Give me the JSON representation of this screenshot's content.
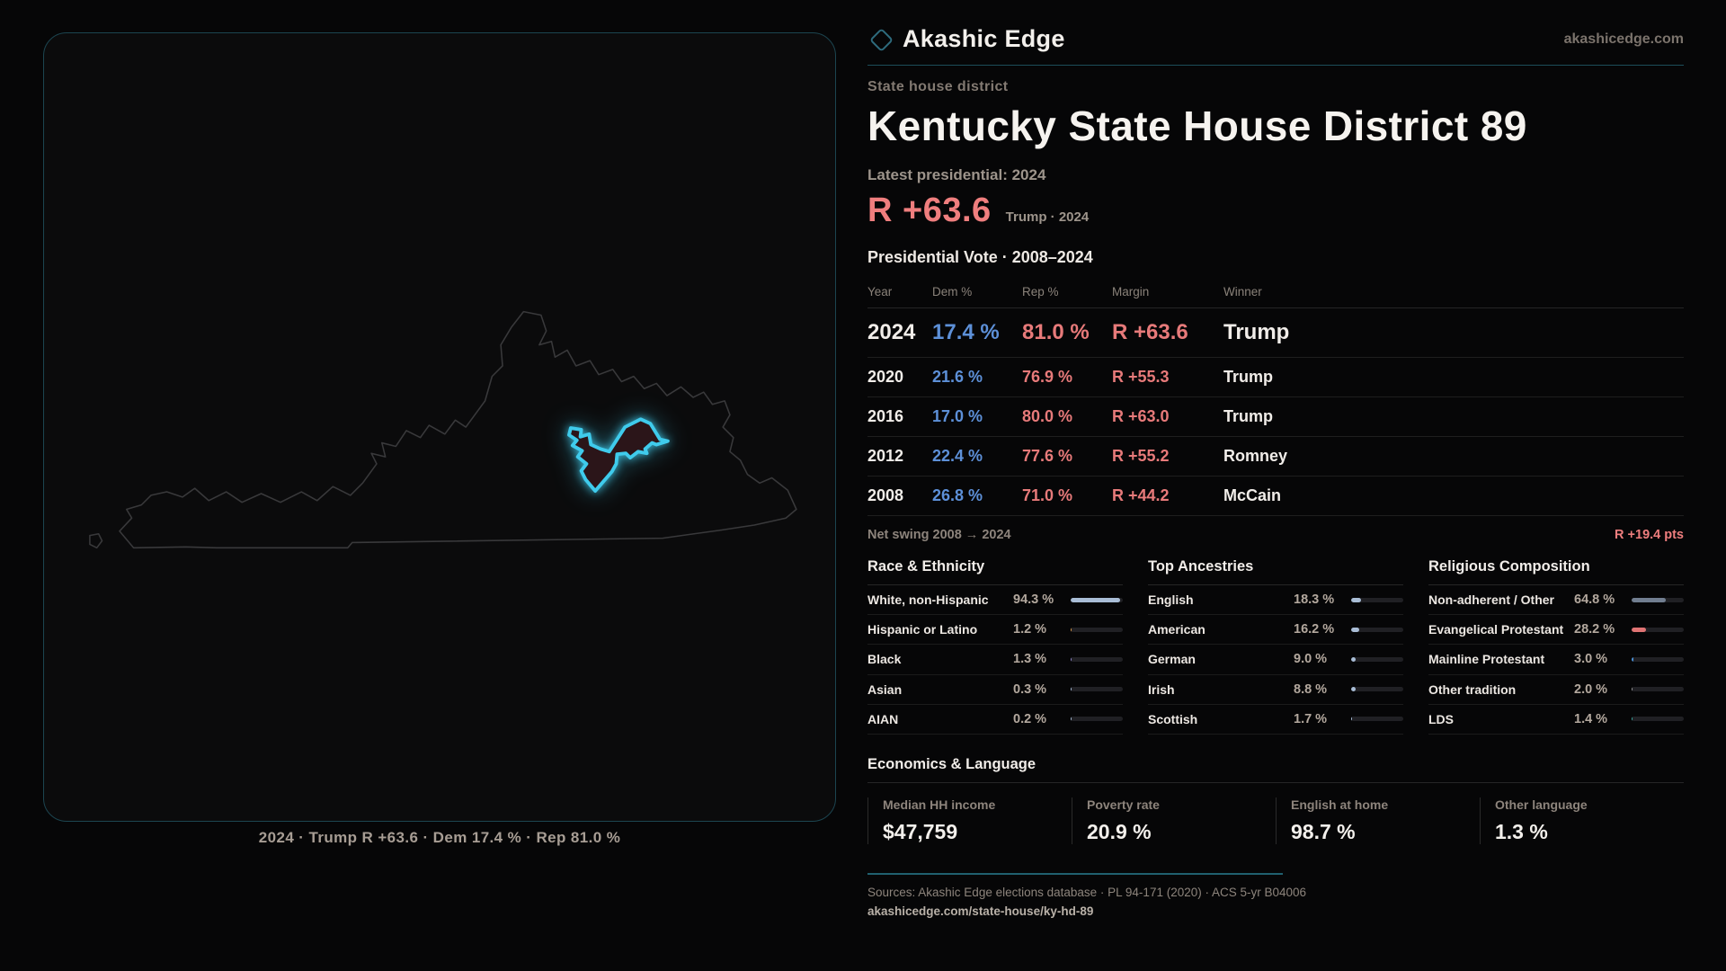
{
  "colors": {
    "accent_cyan": "#3fcbec",
    "rep_red": "#e77a7a",
    "dem_blue": "#5d90d8",
    "teal_rule": "#1d4e5a",
    "bar_steel": "#a9bdd6",
    "bar_slate": "#717e90"
  },
  "map": {
    "caption": "2024 · Trump R +63.6 · Dem 17.4 % · Rep 81.0 %"
  },
  "header": {
    "brand": "Akashic Edge",
    "site": "akashicedge.com",
    "kicker": "State house district",
    "title": "Kentucky State House District 89"
  },
  "headline": {
    "label": "Latest presidential: 2024",
    "margin": "R +63.6",
    "context": "Trump · 2024"
  },
  "vote_table": {
    "title": "Presidential Vote · 2008–2024",
    "columns": {
      "year": "Year",
      "dem": "Dem %",
      "rep": "Rep %",
      "margin": "Margin",
      "winner": "Winner"
    },
    "rows": [
      {
        "year": "2024",
        "dem": "17.4 %",
        "rep": "81.0 %",
        "margin": "R +63.6",
        "winner": "Trump"
      },
      {
        "year": "2020",
        "dem": "21.6 %",
        "rep": "76.9 %",
        "margin": "R +55.3",
        "winner": "Trump"
      },
      {
        "year": "2016",
        "dem": "17.0 %",
        "rep": "80.0 %",
        "margin": "R +63.0",
        "winner": "Trump"
      },
      {
        "year": "2012",
        "dem": "22.4 %",
        "rep": "77.6 %",
        "margin": "R +55.2",
        "winner": "Romney"
      },
      {
        "year": "2008",
        "dem": "26.8 %",
        "rep": "71.0 %",
        "margin": "R +44.2",
        "winner": "McCain"
      }
    ],
    "swing_label": "Net swing 2008 → 2024",
    "swing_value": "R +19.4 pts"
  },
  "race": {
    "title": "Race & Ethnicity",
    "rows": [
      {
        "label": "White, non-Hispanic",
        "value": "94.3 %",
        "pct": 94.3,
        "color": "#a9bdd6"
      },
      {
        "label": "Hispanic or Latino",
        "value": "1.2 %",
        "pct": 1.2,
        "color": "#d99b4e"
      },
      {
        "label": "Black",
        "value": "1.3 %",
        "pct": 1.3,
        "color": "#8f86c9"
      },
      {
        "label": "Asian",
        "value": "0.3 %",
        "pct": 0.3,
        "color": "#a9bdd6"
      },
      {
        "label": "AIAN",
        "value": "0.2 %",
        "pct": 0.2,
        "color": "#a9bdd6"
      }
    ]
  },
  "ancestries": {
    "title": "Top Ancestries",
    "rows": [
      {
        "label": "English",
        "value": "18.3 %",
        "pct": 18.3,
        "color": "#a9bdd6"
      },
      {
        "label": "American",
        "value": "16.2 %",
        "pct": 16.2,
        "color": "#a9bdd6"
      },
      {
        "label": "German",
        "value": "9.0 %",
        "pct": 9.0,
        "color": "#a9bdd6"
      },
      {
        "label": "Irish",
        "value": "8.8 %",
        "pct": 8.8,
        "color": "#a9bdd6"
      },
      {
        "label": "Scottish",
        "value": "1.7 %",
        "pct": 1.7,
        "color": "#a9bdd6"
      }
    ]
  },
  "religion": {
    "title": "Religious Composition",
    "rows": [
      {
        "label": "Non-adherent / Other",
        "value": "64.8 %",
        "pct": 64.8,
        "color": "#717e90"
      },
      {
        "label": "Evangelical Protestant",
        "value": "28.2 %",
        "pct": 28.2,
        "color": "#e07474"
      },
      {
        "label": "Mainline Protestant",
        "value": "3.0 %",
        "pct": 3.0,
        "color": "#4a8fd4"
      },
      {
        "label": "Other tradition",
        "value": "2.0 %",
        "pct": 2.0,
        "color": "#9a9a9a"
      },
      {
        "label": "LDS",
        "value": "1.4 %",
        "pct": 1.4,
        "color": "#3aa8a0"
      }
    ]
  },
  "economics": {
    "title": "Economics & Language",
    "stats": [
      {
        "label": "Median HH income",
        "value": "$47,759"
      },
      {
        "label": "Poverty rate",
        "value": "20.9 %"
      },
      {
        "label": "English at home",
        "value": "98.7 %"
      },
      {
        "label": "Other language",
        "value": "1.3 %"
      }
    ]
  },
  "footer": {
    "sources": "Sources: Akashic Edge elections database · PL 94-171 (2020) · ACS 5-yr B04006",
    "link": "akashicedge.com/state-house/ky-hd-89"
  },
  "chart_data": [
    {
      "type": "table",
      "title": "Presidential Vote · 2008–2024",
      "columns": [
        "Year",
        "Dem %",
        "Rep %",
        "Margin",
        "Winner"
      ],
      "rows": [
        [
          "2024",
          17.4,
          81.0,
          "R +63.6",
          "Trump"
        ],
        [
          "2020",
          21.6,
          76.9,
          "R +55.3",
          "Trump"
        ],
        [
          "2016",
          17.0,
          80.0,
          "R +63.0",
          "Trump"
        ],
        [
          "2012",
          22.4,
          77.6,
          "R +55.2",
          "Romney"
        ],
        [
          "2008",
          26.8,
          71.0,
          "R +44.2",
          "McCain"
        ]
      ],
      "annotations": [
        "Net swing 2008 → 2024: R +19.4 pts",
        "Latest presidential 2024: R +63.6 (Trump)"
      ]
    },
    {
      "type": "bar",
      "title": "Race & Ethnicity",
      "categories": [
        "White, non-Hispanic",
        "Hispanic or Latino",
        "Black",
        "Asian",
        "AIAN"
      ],
      "values": [
        94.3,
        1.2,
        1.3,
        0.3,
        0.2
      ],
      "xlabel": "",
      "ylabel": "%",
      "ylim": [
        0,
        100
      ]
    },
    {
      "type": "bar",
      "title": "Top Ancestries",
      "categories": [
        "English",
        "American",
        "German",
        "Irish",
        "Scottish"
      ],
      "values": [
        18.3,
        16.2,
        9.0,
        8.8,
        1.7
      ],
      "xlabel": "",
      "ylabel": "%",
      "ylim": [
        0,
        100
      ]
    },
    {
      "type": "bar",
      "title": "Religious Composition",
      "categories": [
        "Non-adherent / Other",
        "Evangelical Protestant",
        "Mainline Protestant",
        "Other tradition",
        "LDS"
      ],
      "values": [
        64.8,
        28.2,
        3.0,
        2.0,
        1.4
      ],
      "xlabel": "",
      "ylabel": "%",
      "ylim": [
        0,
        100
      ]
    },
    {
      "type": "bar",
      "title": "Economics & Language",
      "categories": [
        "Median HH income ($)",
        "Poverty rate %",
        "English at home %",
        "Other language %"
      ],
      "values": [
        47759,
        20.9,
        98.7,
        1.3
      ]
    }
  ]
}
